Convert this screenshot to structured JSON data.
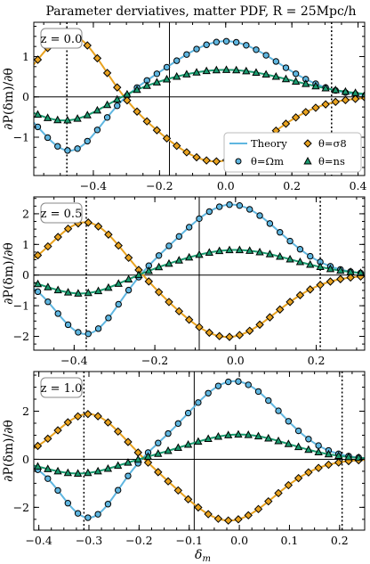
{
  "title": "Parameter derviatives, matter PDF, R = 25Mpc/h",
  "xlabel": "δm",
  "ylabel": "∂P(δm)/∂θ",
  "colors": {
    "omega_m": "#5fb6e0",
    "sigma_8": "#e8a21f",
    "n_s": "#1a9a6e",
    "marker_edge": "#000000"
  },
  "legend": {
    "theory": "Theory",
    "omega_m": "θ=Ωm",
    "sigma_8": "θ=σ8",
    "n_s": "θ=ns"
  },
  "chart_data": [
    {
      "type": "line",
      "panel_label": "z = 0.0",
      "xlim": [
        -0.58,
        0.42
      ],
      "ylim": [
        -1.95,
        1.85
      ],
      "xticks": [
        -0.4,
        -0.2,
        0.0,
        0.2,
        0.4
      ],
      "xticklabels": [
        "−0.4",
        "−0.2",
        "0.0",
        "0.2",
        "0.4"
      ],
      "yticks": [
        -1,
        0,
        1
      ],
      "yticklabels": [
        "−1",
        "0",
        "1"
      ],
      "vlines_solid": [
        -0.17
      ],
      "vlines_dotted": [
        -0.48,
        0.32
      ],
      "curves": {
        "omega_m": {
          "amp": -1.35,
          "center": -0.47,
          "width": 0.09,
          "amp2": 1.38,
          "center2": 0.0,
          "width2": 0.16
        },
        "sigma_8": {
          "amp": 1.58,
          "center": -0.47,
          "width": 0.095,
          "amp2": -1.6,
          "center2": -0.03,
          "width2": 0.16
        },
        "n_s": {
          "amp": -0.62,
          "center": -0.48,
          "width": 0.11,
          "amp2": 0.67,
          "center2": 0.0,
          "width2": 0.2
        }
      },
      "markers_x_step": 0.03
    },
    {
      "type": "line",
      "panel_label": "z = 0.5",
      "xlim": [
        -0.5,
        0.32
      ],
      "ylim": [
        -2.45,
        2.55
      ],
      "xticks": [
        -0.4,
        -0.2,
        0.0,
        0.2
      ],
      "xticklabels": [
        "−0.4",
        "−0.2",
        "0.0",
        "0.2"
      ],
      "yticks": [
        -2,
        -1,
        0,
        1,
        2
      ],
      "yticklabels": [
        "−2",
        "−1",
        "0",
        "1",
        "2"
      ],
      "vlines_solid": [
        -0.09
      ],
      "vlines_dotted": [
        -0.37,
        0.21
      ],
      "curves": {
        "omega_m": {
          "amp": -1.95,
          "center": -0.37,
          "width": 0.075,
          "amp2": 2.3,
          "center2": -0.01,
          "width2": 0.12
        },
        "sigma_8": {
          "amp": 1.75,
          "center": -0.37,
          "width": 0.085,
          "amp2": -2.02,
          "center2": -0.02,
          "width2": 0.12
        },
        "n_s": {
          "amp": -0.62,
          "center": -0.38,
          "width": 0.09,
          "amp2": 0.82,
          "center2": 0.0,
          "width2": 0.14
        }
      },
      "markers_x_step": 0.025
    },
    {
      "type": "line",
      "panel_label": "z = 1.0",
      "xlim": [
        -0.41,
        0.25
      ],
      "ylim": [
        -2.95,
        3.65
      ],
      "xticks": [
        -0.4,
        -0.3,
        -0.2,
        -0.1,
        0.0,
        0.1,
        0.2
      ],
      "xticklabels": [
        "−0.4",
        "−0.3",
        "−0.2",
        "−0.1",
        "0.0",
        "0.1",
        "0.2"
      ],
      "yticks": [
        -2,
        0,
        2
      ],
      "yticklabels": [
        "−2",
        "0",
        "2"
      ],
      "vlines_solid": [
        -0.09
      ],
      "vlines_dotted": [
        -0.31,
        0.205
      ],
      "curves": {
        "omega_m": {
          "amp": -2.45,
          "center": -0.3,
          "width": 0.055,
          "amp2": 3.25,
          "center2": -0.01,
          "width2": 0.09
        },
        "sigma_8": {
          "amp": 1.9,
          "center": -0.3,
          "width": 0.065,
          "amp2": -2.55,
          "center2": -0.02,
          "width2": 0.09
        },
        "n_s": {
          "amp": -0.6,
          "center": -0.32,
          "width": 0.07,
          "amp2": 1.03,
          "center2": 0.0,
          "width2": 0.1
        }
      },
      "markers_x_step": 0.02
    }
  ]
}
